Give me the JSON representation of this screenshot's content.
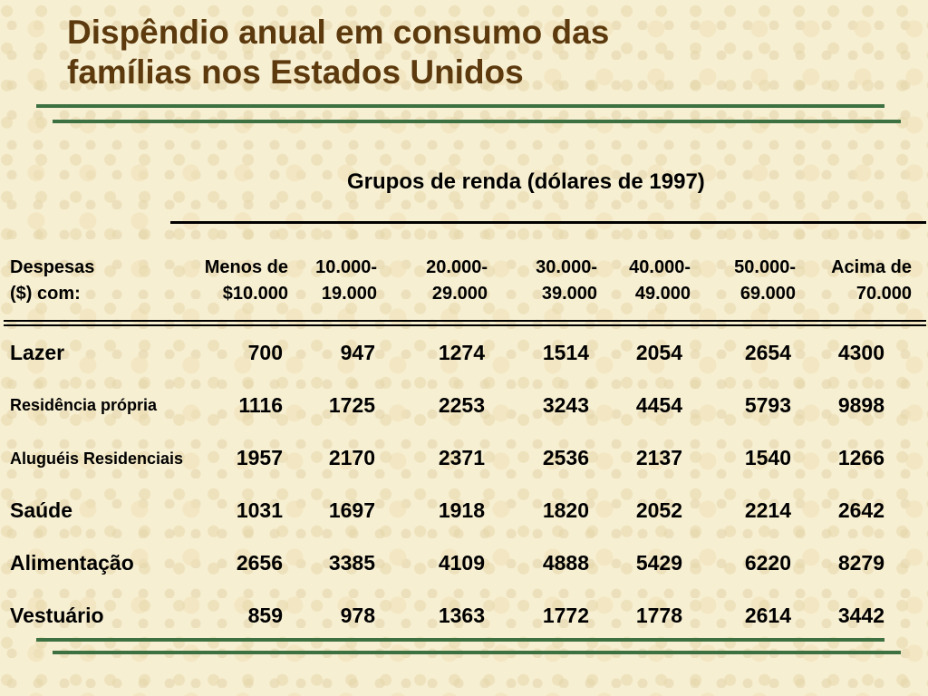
{
  "title_line1": "Dispêndio anual em consumo das",
  "title_line2": "famílias nos Estados Unidos",
  "subtitle": "Grupos de renda (dólares de 1997)",
  "columns": [
    {
      "line1": "Despesas",
      "line2": "($) com:"
    },
    {
      "line1": "Menos de",
      "line2": "$10.000"
    },
    {
      "line1": "10.000-",
      "line2": "19.000"
    },
    {
      "line1": "20.000-",
      "line2": "29.000"
    },
    {
      "line1": "30.000-",
      "line2": "39.000"
    },
    {
      "line1": "40.000-",
      "line2": "49.000"
    },
    {
      "line1": "50.000-",
      "line2": "69.000"
    },
    {
      "line1": "Acima de",
      "line2": "70.000"
    }
  ],
  "rows": [
    {
      "label": "Lazer",
      "values": [
        "700",
        "947",
        "1274",
        "1514",
        "2054",
        "2654",
        "4300"
      ]
    },
    {
      "label": "Residência própria",
      "values": [
        "1116",
        "1725",
        "2253",
        "3243",
        "4454",
        "5793",
        "9898"
      ]
    },
    {
      "label": "Aluguéis Residenciais",
      "values": [
        "1957",
        "2170",
        "2371",
        "2536",
        "2137",
        "1540",
        "1266"
      ]
    },
    {
      "label": "Saúde",
      "values": [
        "1031",
        "1697",
        "1918",
        "1820",
        "2052",
        "2214",
        "2642"
      ]
    },
    {
      "label": "Alimentação",
      "values": [
        "2656",
        "3385",
        "4109",
        "4888",
        "5429",
        "6220",
        "8279"
      ]
    },
    {
      "label": "Vestuário",
      "values": [
        "859",
        "978",
        "1363",
        "1772",
        "1778",
        "2614",
        "3442"
      ]
    }
  ]
}
